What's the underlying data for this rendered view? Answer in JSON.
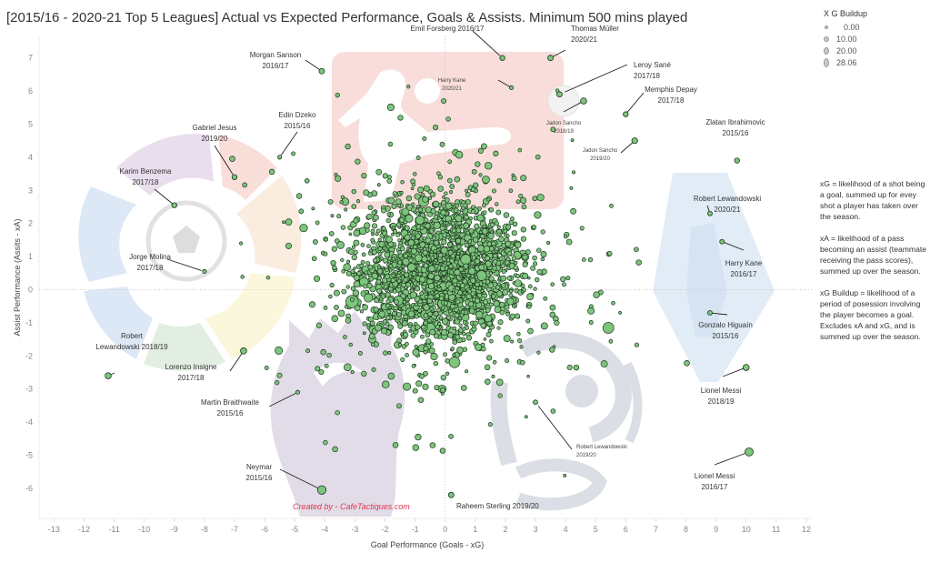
{
  "title": "[2015/16 - 2020-21 Top 5 Leagues] Actual vs Expected Performance, Goals & Assists. Minimum 500 mins played",
  "legend": {
    "title": "X G Buildup",
    "items": [
      {
        "label": "0.00",
        "value": 0
      },
      {
        "label": "10.00",
        "value": 10
      },
      {
        "label": "20.00",
        "value": 20
      },
      {
        "label": "28.06",
        "value": 28.06
      }
    ]
  },
  "notes": [
    "xG = likelihood of a shot being a goal, summed up for evey shot a player has taken over the season.",
    "xA = likelihood of a pass becoming an assist (teammate receiving the pass scores), summed up over the season.",
    "xG Buildup = likelihood of a period of posession involving the player becomes a goal. Excludes xA and xG, and is summed up over the season."
  ],
  "credit": "Created by - CafeTactiques.com",
  "colors": {
    "point_fill": "#7dc47d",
    "point_stroke": "#1e361e",
    "credit": "#e3344c"
  },
  "chart_data": {
    "type": "scatter",
    "title": "[2015/16 - 2020-21 Top 5 Leagues] Actual vs Expected Performance, Goals & Assists. Minimum 500 mins played",
    "xlabel": "Goal Performance (Goals - xG)",
    "ylabel": "Assist Performance (Assits - xA)",
    "xlim": [
      -13.5,
      12.2
    ],
    "ylim": [
      -6.9,
      7.6
    ],
    "xticks": [
      "-13",
      "-12",
      "-11",
      "-10",
      "-9",
      "-8",
      "-7",
      "-6",
      "-5",
      "-4",
      "-3",
      "-2",
      "-1",
      "0",
      "1",
      "2",
      "3",
      "4",
      "5",
      "6",
      "7",
      "8",
      "9",
      "10",
      "11",
      "12"
    ],
    "yticks": [
      "7",
      "6",
      "5",
      "4",
      "3",
      "2",
      "1",
      "0",
      "-1",
      "-2",
      "-3",
      "-4",
      "-5",
      "-6"
    ],
    "grid": false,
    "zero_lines": true,
    "size_field": "X G Buildup",
    "legend_position": "top-right",
    "labeled_points": [
      {
        "player": "Morgan Sanson",
        "season": "2016/17",
        "x": -4.1,
        "y": 6.6,
        "buildup": 4
      },
      {
        "player": "Emil Forsberg 2016/17",
        "season": "",
        "x": 1.9,
        "y": 7.0,
        "buildup": 3
      },
      {
        "player": "Thomas Müller",
        "season": "2020/21",
        "x": 3.5,
        "y": 7.0,
        "buildup": 4
      },
      {
        "player": "Harry Kane",
        "season": "2020/21",
        "x": 2.2,
        "y": 6.1,
        "buildup": 1
      },
      {
        "player": "Leroy Sané",
        "season": "2017/18",
        "x": 3.8,
        "y": 5.9,
        "buildup": 4
      },
      {
        "player": "Jadon Sancho",
        "season": "2018/19",
        "x": 4.6,
        "y": 5.7,
        "buildup": 6
      },
      {
        "player": "Memphis Depay",
        "season": "2017/18",
        "x": 6.0,
        "y": 5.3,
        "buildup": 3
      },
      {
        "player": "Jadon Sancho",
        "season": "2019/20",
        "x": 6.3,
        "y": 4.5,
        "buildup": 5
      },
      {
        "player": "Zlatan Ibrahimovic",
        "season": "2015/16",
        "x": 9.7,
        "y": 3.9,
        "buildup": 3
      },
      {
        "player": "Robert Lewandowski",
        "season": "2020/21",
        "x": 8.8,
        "y": 2.3,
        "buildup": 2
      },
      {
        "player": "Harry Kane",
        "season": "2016/17",
        "x": 9.2,
        "y": 1.45,
        "buildup": 2
      },
      {
        "player": "Gonzalo Higuaín",
        "season": "2015/16",
        "x": 8.8,
        "y": -0.7,
        "buildup": 2
      },
      {
        "player": "Lionel Messi",
        "season": "2018/19",
        "x": 10.0,
        "y": -2.35,
        "buildup": 6
      },
      {
        "player": "Lionel Messi",
        "season": "2016/17",
        "x": 10.1,
        "y": -4.9,
        "buildup": 14
      },
      {
        "player": "Raheem Sterling 2019/20",
        "season": "",
        "x": 0.2,
        "y": -6.2,
        "buildup": 4
      },
      {
        "player": "Robert Lewandowski",
        "season": "2019/20",
        "x": 3.0,
        "y": -3.4,
        "buildup": 2
      },
      {
        "player": "Neymar",
        "season": "2015/16",
        "x": -4.1,
        "y": -6.05,
        "buildup": 16
      },
      {
        "player": "Martin Braithwaite",
        "season": "2015/16",
        "x": -4.9,
        "y": -3.1,
        "buildup": 1
      },
      {
        "player": "Lorenzo Insigne",
        "season": "2017/18",
        "x": -6.7,
        "y": -1.85,
        "buildup": 6
      },
      {
        "player": "Robert",
        "season": "Lewandowski 2018/19",
        "x": -11.2,
        "y": -2.6,
        "buildup": 6
      },
      {
        "player": "Jorge Molina",
        "season": "2017/18",
        "x": -8.0,
        "y": 0.55,
        "buildup": 1
      },
      {
        "player": "Karim Benzema",
        "season": "2017/18",
        "x": -9.0,
        "y": 2.55,
        "buildup": 3
      },
      {
        "player": "Gabriel Jesus",
        "season": "2019/20",
        "x": -7.0,
        "y": 3.4,
        "buildup": 3
      },
      {
        "player": "Edin Dzeko",
        "season": "2015/16",
        "x": -5.5,
        "y": 4.0,
        "buildup": 1
      }
    ],
    "unlabeled_cloud": {
      "approx_count": 2300,
      "x_center": -0.2,
      "x_spread": 1.35,
      "y_center": 0.55,
      "y_spread": 1.05,
      "buildup_mean": 2.5
    }
  }
}
